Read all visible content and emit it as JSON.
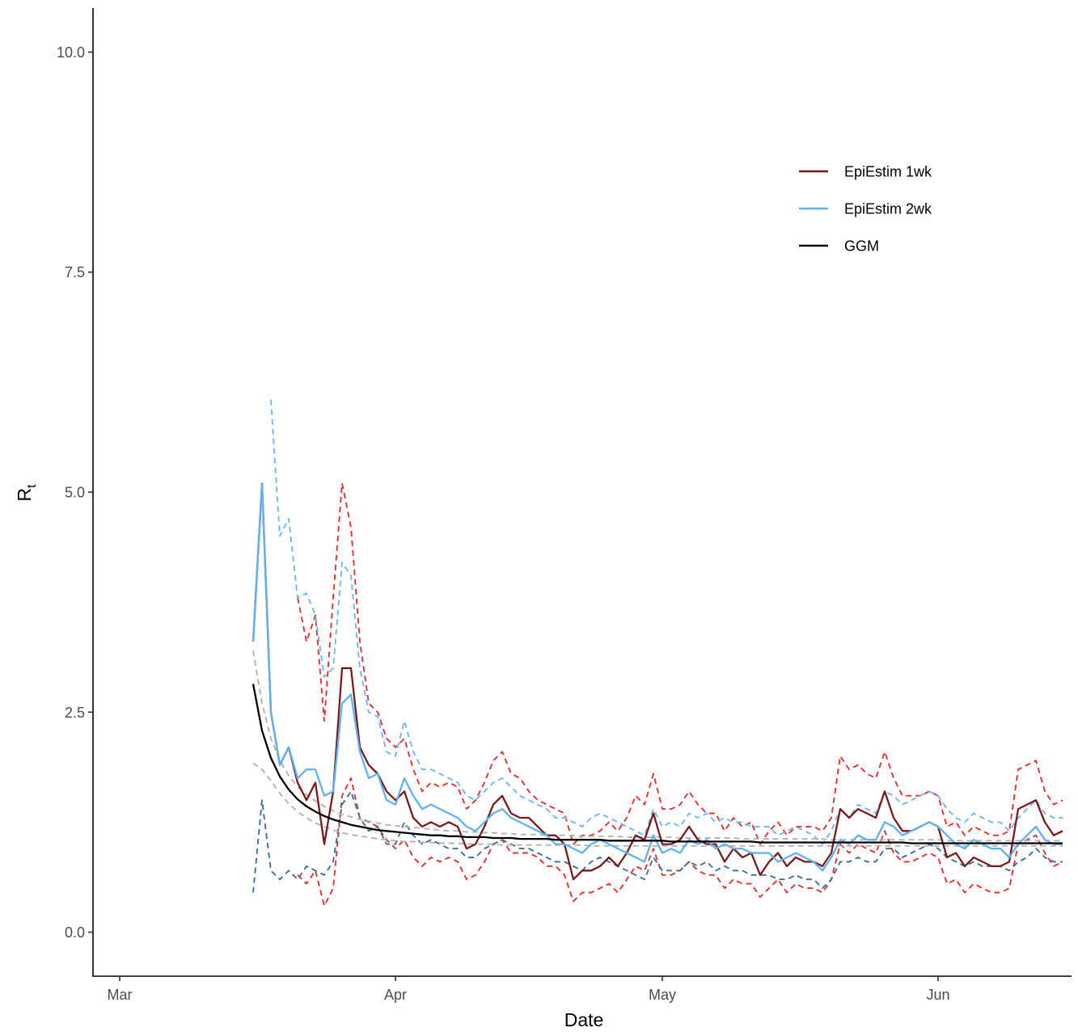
{
  "chart_data": {
    "type": "line",
    "xlabel": "Date",
    "ylabel": {
      "main": "R",
      "sub": "t"
    },
    "x_ticks": [
      "Mar",
      "Apr",
      "May",
      "Jun"
    ],
    "x_tick_dates": [
      "2020-03-01",
      "2020-04-01",
      "2020-05-01",
      "2020-06-01"
    ],
    "x_range": [
      "2020-02-27",
      "2020-06-16"
    ],
    "y_ticks": [
      "0.0",
      "2.5",
      "5.0",
      "7.5",
      "10.0"
    ],
    "y_tick_values": [
      0,
      2.5,
      5,
      7.5,
      10
    ],
    "ylim": [
      -0.5,
      10.5
    ],
    "grid": false,
    "legend_position": "top-right",
    "legend": [
      {
        "label": "EpiEstim 1wk",
        "color": "#7B1A1A"
      },
      {
        "label": "EpiEstim 2wk",
        "color": "#5FB2F5"
      },
      {
        "label": "GGM",
        "color": "#000000"
      }
    ],
    "start_date": "2020-03-16",
    "series": [
      {
        "name": "EpiEstim 1wk",
        "style": "solid",
        "color": "#7B1A1A",
        "values": [
          3.3,
          5.1,
          2.5,
          1.9,
          2.1,
          1.7,
          1.5,
          1.7,
          1.0,
          1.6,
          3.0,
          3.0,
          2.1,
          1.9,
          1.8,
          1.6,
          1.5,
          1.6,
          1.3,
          1.2,
          1.25,
          1.2,
          1.25,
          1.2,
          0.95,
          1.0,
          1.2,
          1.45,
          1.55,
          1.35,
          1.3,
          1.3,
          1.2,
          1.1,
          1.1,
          1.0,
          0.6,
          0.7,
          0.7,
          0.75,
          0.85,
          0.75,
          0.9,
          1.1,
          1.05,
          1.35,
          1.0,
          1.0,
          1.05,
          1.2,
          1.05,
          1.0,
          1.0,
          0.8,
          0.95,
          0.85,
          0.9,
          0.65,
          0.8,
          0.9,
          0.75,
          0.85,
          0.8,
          0.8,
          0.75,
          0.9,
          1.4,
          1.3,
          1.4,
          1.35,
          1.3,
          1.6,
          1.3,
          1.15,
          1.15,
          1.2,
          1.25,
          1.2,
          0.85,
          0.9,
          0.75,
          0.85,
          0.8,
          0.75,
          0.75,
          0.8,
          1.4,
          1.45,
          1.5,
          1.25,
          1.1,
          1.15
        ]
      },
      {
        "name": "EpiEstim 2wk",
        "style": "solid",
        "color": "#5FB2F5",
        "values": [
          3.3,
          5.1,
          2.5,
          1.9,
          2.1,
          1.75,
          1.85,
          1.85,
          1.55,
          1.6,
          2.6,
          2.7,
          2.05,
          1.75,
          1.8,
          1.5,
          1.45,
          1.75,
          1.55,
          1.4,
          1.45,
          1.4,
          1.35,
          1.3,
          1.2,
          1.15,
          1.25,
          1.35,
          1.4,
          1.3,
          1.25,
          1.2,
          1.15,
          1.1,
          1.0,
          1.0,
          0.95,
          0.9,
          1.0,
          1.05,
          1.0,
          0.95,
          0.9,
          0.85,
          0.8,
          1.1,
          0.9,
          0.95,
          0.9,
          1.05,
          1.0,
          1.05,
          0.95,
          1.0,
          0.95,
          0.95,
          0.9,
          0.9,
          0.9,
          0.8,
          0.85,
          0.9,
          0.85,
          0.8,
          0.7,
          0.85,
          1.05,
          1.0,
          1.1,
          1.05,
          1.05,
          1.25,
          1.2,
          1.1,
          1.15,
          1.2,
          1.25,
          1.2,
          1.1,
          1.0,
          0.95,
          1.05,
          1.0,
          0.95,
          0.95,
          0.85,
          1.0,
          1.1,
          1.2,
          1.05,
          1.0,
          1.0
        ]
      },
      {
        "name": "GGM",
        "style": "solid",
        "color": "#000000",
        "values": [
          2.82,
          2.29,
          1.98,
          1.77,
          1.62,
          1.51,
          1.43,
          1.37,
          1.32,
          1.28,
          1.25,
          1.22,
          1.2,
          1.18,
          1.16,
          1.15,
          1.14,
          1.13,
          1.12,
          1.11,
          1.1,
          1.1,
          1.09,
          1.09,
          1.08,
          1.08,
          1.08,
          1.07,
          1.07,
          1.07,
          1.06,
          1.06,
          1.06,
          1.06,
          1.05,
          1.05,
          1.05,
          1.05,
          1.05,
          1.05,
          1.04,
          1.04,
          1.04,
          1.04,
          1.04,
          1.04,
          1.04,
          1.03,
          1.03,
          1.03,
          1.03,
          1.03,
          1.03,
          1.03,
          1.03,
          1.03,
          1.03,
          1.02,
          1.02,
          1.02,
          1.02,
          1.02,
          1.02,
          1.02,
          1.02,
          1.02,
          1.02,
          1.02,
          1.02,
          1.02,
          1.02,
          1.02,
          1.02,
          1.02,
          1.01,
          1.01,
          1.01,
          1.01,
          1.01,
          1.01,
          1.01,
          1.01,
          1.01,
          1.01,
          1.01,
          1.01,
          1.01,
          1.01,
          1.01,
          1.01,
          1.01,
          1.01
        ]
      },
      {
        "name": "EpiEstim 1wk upper",
        "style": "dashed",
        "color": "#E8312F",
        "values": [
          null,
          null,
          null,
          null,
          null,
          3.8,
          3.3,
          3.6,
          2.4,
          3.8,
          5.1,
          4.6,
          3.3,
          2.6,
          2.5,
          2.2,
          2.1,
          2.2,
          1.85,
          1.6,
          1.7,
          1.65,
          1.7,
          1.65,
          1.4,
          1.5,
          1.7,
          1.95,
          2.05,
          1.8,
          1.75,
          1.6,
          1.5,
          1.45,
          1.4,
          1.35,
          1.0,
          1.1,
          1.1,
          1.15,
          1.25,
          1.15,
          1.3,
          1.55,
          1.45,
          1.8,
          1.4,
          1.4,
          1.45,
          1.6,
          1.45,
          1.35,
          1.35,
          1.15,
          1.3,
          1.2,
          1.25,
          1.0,
          1.15,
          1.25,
          1.1,
          1.2,
          1.2,
          1.2,
          1.15,
          1.3,
          2.0,
          1.85,
          1.9,
          1.8,
          1.75,
          2.05,
          1.75,
          1.55,
          1.55,
          1.55,
          1.6,
          1.55,
          1.2,
          1.25,
          1.1,
          1.2,
          1.15,
          1.1,
          1.1,
          1.15,
          1.85,
          1.9,
          1.95,
          1.6,
          1.45,
          1.5
        ]
      },
      {
        "name": "EpiEstim 1wk lower",
        "style": "dashed",
        "color": "#E8312F",
        "values": [
          null,
          null,
          null,
          null,
          null,
          0.65,
          0.55,
          0.7,
          0.3,
          0.5,
          1.55,
          1.75,
          1.3,
          1.25,
          1.2,
          1.05,
          0.95,
          1.05,
          0.85,
          0.75,
          0.85,
          0.8,
          0.85,
          0.8,
          0.6,
          0.65,
          0.8,
          1.0,
          1.05,
          0.9,
          0.9,
          0.9,
          0.85,
          0.75,
          0.75,
          0.65,
          0.35,
          0.45,
          0.45,
          0.5,
          0.55,
          0.45,
          0.6,
          0.75,
          0.7,
          0.95,
          0.65,
          0.65,
          0.7,
          0.8,
          0.7,
          0.65,
          0.65,
          0.5,
          0.6,
          0.55,
          0.55,
          0.4,
          0.5,
          0.6,
          0.45,
          0.55,
          0.5,
          0.5,
          0.45,
          0.6,
          1.0,
          0.9,
          1.0,
          0.95,
          0.9,
          1.15,
          0.9,
          0.8,
          0.8,
          0.85,
          0.9,
          0.85,
          0.55,
          0.6,
          0.45,
          0.55,
          0.5,
          0.45,
          0.45,
          0.5,
          1.0,
          1.05,
          1.1,
          0.9,
          0.75,
          0.8
        ]
      },
      {
        "name": "EpiEstim 2wk upper",
        "style": "dashed",
        "color": "#6FB8F5",
        "values": [
          null,
          null,
          6.05,
          4.5,
          4.7,
          3.8,
          3.85,
          3.6,
          2.9,
          3.0,
          4.2,
          4.05,
          3.0,
          2.5,
          2.45,
          2.05,
          2.0,
          2.4,
          2.05,
          1.85,
          1.85,
          1.8,
          1.75,
          1.7,
          1.55,
          1.5,
          1.6,
          1.7,
          1.75,
          1.65,
          1.55,
          1.5,
          1.45,
          1.4,
          1.3,
          1.3,
          1.25,
          1.2,
          1.3,
          1.35,
          1.3,
          1.25,
          1.2,
          1.15,
          1.1,
          1.4,
          1.2,
          1.25,
          1.2,
          1.35,
          1.3,
          1.35,
          1.25,
          1.3,
          1.25,
          1.25,
          1.2,
          1.2,
          1.2,
          1.1,
          1.15,
          1.2,
          1.15,
          1.1,
          1.0,
          1.15,
          1.4,
          1.3,
          1.45,
          1.4,
          1.35,
          1.6,
          1.55,
          1.45,
          1.5,
          1.55,
          1.6,
          1.55,
          1.4,
          1.3,
          1.25,
          1.35,
          1.3,
          1.25,
          1.25,
          1.15,
          1.3,
          1.4,
          1.5,
          1.35,
          1.3,
          1.3
        ]
      },
      {
        "name": "EpiEstim 2wk lower",
        "style": "dashed",
        "color": "#3E6F9E",
        "values": [
          0.45,
          1.5,
          0.7,
          0.6,
          0.7,
          0.6,
          0.75,
          0.7,
          0.65,
          0.8,
          1.45,
          1.6,
          1.3,
          1.15,
          1.2,
          1.0,
          1.0,
          1.25,
          1.1,
          1.0,
          1.05,
          1.0,
          0.95,
          0.95,
          0.85,
          0.85,
          0.95,
          1.0,
          1.05,
          1.0,
          0.95,
          0.95,
          0.9,
          0.85,
          0.8,
          0.8,
          0.75,
          0.7,
          0.8,
          0.85,
          0.8,
          0.75,
          0.7,
          0.65,
          0.6,
          0.85,
          0.7,
          0.7,
          0.7,
          0.8,
          0.75,
          0.8,
          0.7,
          0.75,
          0.7,
          0.7,
          0.65,
          0.65,
          0.65,
          0.6,
          0.6,
          0.65,
          0.6,
          0.6,
          0.5,
          0.6,
          0.8,
          0.8,
          0.85,
          0.8,
          0.8,
          0.95,
          0.95,
          0.85,
          0.9,
          0.95,
          1.0,
          0.95,
          0.85,
          0.8,
          0.75,
          0.8,
          0.75,
          0.75,
          0.75,
          0.7,
          0.8,
          0.85,
          0.95,
          0.85,
          0.8,
          0.8
        ]
      },
      {
        "name": "GGM upper",
        "style": "dashed",
        "color": "#B3B3B3",
        "values": [
          3.2,
          2.6,
          2.2,
          1.95,
          1.78,
          1.65,
          1.56,
          1.49,
          1.43,
          1.38,
          1.34,
          1.31,
          1.28,
          1.26,
          1.24,
          1.22,
          1.21,
          1.2,
          1.19,
          1.18,
          1.17,
          1.16,
          1.15,
          1.15,
          1.14,
          1.14,
          1.13,
          1.13,
          1.12,
          1.12,
          1.11,
          1.11,
          1.11,
          1.1,
          1.1,
          1.1,
          1.1,
          1.09,
          1.09,
          1.09,
          1.09,
          1.09,
          1.08,
          1.08,
          1.08,
          1.08,
          1.08,
          1.08,
          1.07,
          1.07,
          1.07,
          1.07,
          1.07,
          1.07,
          1.07,
          1.06,
          1.06,
          1.06,
          1.06,
          1.06,
          1.06,
          1.06,
          1.06,
          1.06,
          1.06,
          1.05,
          1.05,
          1.05,
          1.05,
          1.05,
          1.05,
          1.05,
          1.05,
          1.05,
          1.05,
          1.05,
          1.05,
          1.05,
          1.04,
          1.04,
          1.04,
          1.04,
          1.04,
          1.04,
          1.04,
          1.04,
          1.04,
          1.04,
          1.04,
          1.04,
          1.04,
          1.04
        ]
      },
      {
        "name": "GGM lower",
        "style": "dashed",
        "color": "#B3B3B3",
        "values": [
          1.92,
          1.85,
          1.72,
          1.58,
          1.46,
          1.37,
          1.3,
          1.24,
          1.2,
          1.16,
          1.13,
          1.11,
          1.09,
          1.08,
          1.06,
          1.05,
          1.04,
          1.03,
          1.03,
          1.02,
          1.02,
          1.01,
          1.01,
          1.01,
          1.0,
          1.0,
          1.0,
          1.0,
          0.99,
          0.99,
          0.99,
          0.99,
          0.99,
          0.99,
          0.99,
          0.99,
          0.99,
          0.99,
          0.98,
          0.98,
          0.98,
          0.98,
          0.98,
          0.98,
          0.98,
          0.98,
          0.98,
          0.98,
          0.98,
          0.98,
          0.98,
          0.98,
          0.98,
          0.98,
          0.98,
          0.98,
          0.98,
          0.98,
          0.98,
          0.98,
          0.98,
          0.98,
          0.98,
          0.98,
          0.98,
          0.98,
          0.98,
          0.98,
          0.98,
          0.98,
          0.98,
          0.98,
          0.98,
          0.98,
          0.98,
          0.98,
          0.98,
          0.98,
          0.98,
          0.98,
          0.98,
          0.98,
          0.98,
          0.98,
          0.98,
          0.98,
          0.98,
          0.98,
          0.98,
          0.98,
          0.98,
          0.98
        ]
      }
    ]
  }
}
